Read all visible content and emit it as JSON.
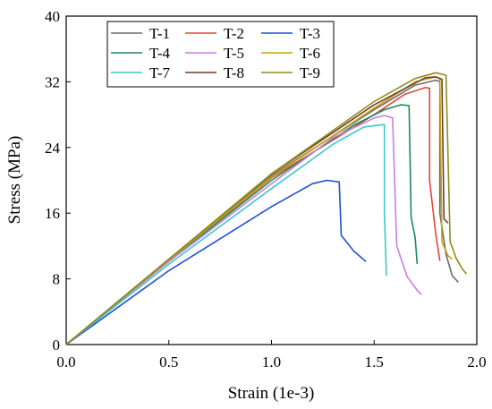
{
  "chart_data": {
    "type": "line",
    "title": "",
    "xlabel": "Strain (1e-3)",
    "ylabel": "Stress (MPa)",
    "xlim": [
      0,
      2.0
    ],
    "ylim": [
      0,
      40
    ],
    "xticks": [
      "0.0",
      "0.5",
      "1.0",
      "1.5",
      "2.0"
    ],
    "yticks": [
      "0",
      "8",
      "16",
      "24",
      "32",
      "40"
    ],
    "legend_position": "top-left inside",
    "grid": false,
    "series": [
      {
        "name": "T-1",
        "color": "#6b6b6b",
        "points": [
          [
            0,
            0
          ],
          [
            0.5,
            10.4
          ],
          [
            1.0,
            20.6
          ],
          [
            1.5,
            28.6
          ],
          [
            1.7,
            31.6
          ],
          [
            1.8,
            32.2
          ],
          [
            1.82,
            32.0
          ],
          [
            1.82,
            16.0
          ],
          [
            1.85,
            11.0
          ],
          [
            1.88,
            8.4
          ],
          [
            1.91,
            7.6
          ]
        ]
      },
      {
        "name": "T-2",
        "color": "#e0473a",
        "points": [
          [
            0,
            0
          ],
          [
            0.5,
            10.3
          ],
          [
            1.0,
            20.3
          ],
          [
            1.5,
            28.0
          ],
          [
            1.65,
            30.5
          ],
          [
            1.75,
            31.3
          ],
          [
            1.77,
            31.2
          ],
          [
            1.77,
            20.0
          ],
          [
            1.8,
            13.5
          ],
          [
            1.82,
            10.2
          ]
        ]
      },
      {
        "name": "T-3",
        "color": "#1f4fd6",
        "points": [
          [
            0,
            0
          ],
          [
            0.5,
            9.0
          ],
          [
            1.0,
            16.8
          ],
          [
            1.2,
            19.6
          ],
          [
            1.27,
            20.0
          ],
          [
            1.33,
            19.8
          ],
          [
            1.34,
            13.3
          ],
          [
            1.4,
            11.4
          ],
          [
            1.46,
            10.1
          ]
        ]
      },
      {
        "name": "T-4",
        "color": "#1a8a5a",
        "points": [
          [
            0,
            0
          ],
          [
            0.5,
            10.2
          ],
          [
            1.0,
            20.0
          ],
          [
            1.4,
            26.7
          ],
          [
            1.55,
            28.6
          ],
          [
            1.63,
            29.2
          ],
          [
            1.67,
            29.1
          ],
          [
            1.68,
            15.5
          ],
          [
            1.7,
            13.0
          ],
          [
            1.71,
            9.8
          ]
        ]
      },
      {
        "name": "T-5",
        "color": "#c77ee0",
        "points": [
          [
            0,
            0
          ],
          [
            0.5,
            10.1
          ],
          [
            1.0,
            19.6
          ],
          [
            1.3,
            25.2
          ],
          [
            1.5,
            27.6
          ],
          [
            1.55,
            27.9
          ],
          [
            1.59,
            27.6
          ],
          [
            1.61,
            12.0
          ],
          [
            1.66,
            8.3
          ],
          [
            1.71,
            6.6
          ],
          [
            1.73,
            6.1
          ]
        ]
      },
      {
        "name": "T-6",
        "color": "#c8a20c",
        "points": [
          [
            0,
            0
          ],
          [
            0.5,
            10.3
          ],
          [
            1.0,
            20.4
          ],
          [
            1.5,
            28.8
          ],
          [
            1.7,
            32.0
          ],
          [
            1.8,
            32.6
          ],
          [
            1.82,
            32.4
          ],
          [
            1.83,
            12.5
          ],
          [
            1.86,
            10.8
          ],
          [
            1.88,
            10.4
          ]
        ]
      },
      {
        "name": "T-7",
        "color": "#3fc6c9",
        "points": [
          [
            0,
            0
          ],
          [
            0.5,
            9.8
          ],
          [
            1.0,
            19.0
          ],
          [
            1.3,
            24.4
          ],
          [
            1.45,
            26.5
          ],
          [
            1.55,
            26.8
          ],
          [
            1.55,
            16.0
          ],
          [
            1.56,
            8.4
          ]
        ]
      },
      {
        "name": "T-8",
        "color": "#6e3f24",
        "points": [
          [
            0,
            0
          ],
          [
            0.5,
            10.4
          ],
          [
            1.0,
            20.8
          ],
          [
            1.5,
            29.2
          ],
          [
            1.75,
            32.5
          ],
          [
            1.8,
            32.6
          ],
          [
            1.83,
            32.3
          ],
          [
            1.84,
            15.3
          ],
          [
            1.86,
            14.8
          ]
        ]
      },
      {
        "name": "T-9",
        "color": "#8e8e1e",
        "points": [
          [
            0,
            0
          ],
          [
            0.5,
            10.4
          ],
          [
            1.0,
            20.8
          ],
          [
            1.5,
            29.6
          ],
          [
            1.7,
            32.4
          ],
          [
            1.8,
            33.1
          ],
          [
            1.85,
            32.8
          ],
          [
            1.87,
            12.5
          ],
          [
            1.9,
            10.5
          ],
          [
            1.93,
            9.2
          ],
          [
            1.95,
            8.6
          ]
        ]
      }
    ]
  }
}
